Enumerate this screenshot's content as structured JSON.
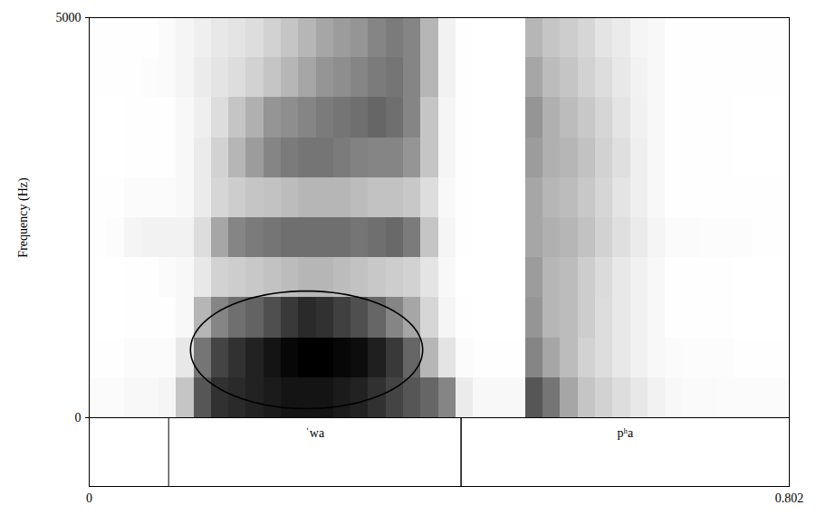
{
  "chart_data": {
    "type": "spectrogram",
    "y_label": "Frequency (Hz)",
    "xlim": [
      0,
      0.802
    ],
    "xticks": [
      0,
      0.802
    ],
    "ylim": [
      0,
      5000
    ],
    "yticks": [
      0,
      5000
    ],
    "time_bins": [
      0,
      0.02,
      0.04,
      0.06,
      0.08,
      0.1,
      0.12,
      0.14,
      0.16,
      0.18,
      0.2,
      0.22,
      0.24,
      0.26,
      0.28,
      0.3,
      0.32,
      0.34,
      0.36,
      0.38,
      0.4,
      0.42,
      0.44,
      0.46,
      0.48,
      0.5,
      0.52,
      0.54,
      0.56,
      0.58,
      0.6,
      0.62,
      0.64,
      0.66,
      0.68,
      0.7,
      0.72,
      0.74,
      0.76,
      0.78,
      0.8
    ],
    "frequency_bins": [
      0,
      500,
      1000,
      1500,
      2000,
      2500,
      3000,
      3500,
      4000,
      4500,
      5000
    ],
    "intensity": [
      [
        8,
        6,
        5,
        5,
        6,
        6,
        5,
        5,
        6,
        6
      ],
      [
        8,
        6,
        5,
        5,
        7,
        6,
        5,
        5,
        6,
        6
      ],
      [
        10,
        8,
        6,
        6,
        12,
        8,
        6,
        6,
        6,
        6
      ],
      [
        10,
        8,
        6,
        6,
        14,
        8,
        6,
        6,
        7,
        6
      ],
      [
        12,
        8,
        6,
        8,
        14,
        8,
        6,
        6,
        8,
        8
      ],
      [
        35,
        20,
        10,
        10,
        14,
        10,
        10,
        10,
        12,
        12
      ],
      [
        70,
        60,
        40,
        20,
        25,
        18,
        18,
        16,
        18,
        16
      ],
      [
        80,
        75,
        55,
        30,
        45,
        28,
        30,
        25,
        22,
        20
      ],
      [
        82,
        80,
        62,
        32,
        55,
        32,
        40,
        35,
        25,
        22
      ],
      [
        84,
        84,
        66,
        34,
        58,
        35,
        48,
        42,
        30,
        25
      ],
      [
        86,
        88,
        72,
        36,
        60,
        36,
        55,
        50,
        35,
        30
      ],
      [
        88,
        92,
        78,
        38,
        62,
        38,
        58,
        52,
        40,
        35
      ],
      [
        88,
        94,
        82,
        40,
        62,
        40,
        60,
        55,
        45,
        40
      ],
      [
        88,
        94,
        80,
        40,
        62,
        40,
        60,
        58,
        50,
        45
      ],
      [
        86,
        92,
        76,
        38,
        62,
        40,
        58,
        60,
        52,
        48
      ],
      [
        84,
        90,
        72,
        36,
        60,
        38,
        56,
        62,
        55,
        50
      ],
      [
        80,
        85,
        65,
        34,
        62,
        36,
        55,
        65,
        58,
        55
      ],
      [
        75,
        78,
        55,
        32,
        64,
        36,
        55,
        62,
        60,
        58
      ],
      [
        70,
        65,
        45,
        30,
        58,
        34,
        50,
        55,
        55,
        55
      ],
      [
        65,
        40,
        28,
        22,
        35,
        25,
        35,
        35,
        40,
        40
      ],
      [
        55,
        22,
        12,
        10,
        12,
        10,
        12,
        12,
        14,
        14
      ],
      [
        18,
        8,
        6,
        5,
        6,
        6,
        6,
        6,
        6,
        6
      ],
      [
        10,
        6,
        5,
        5,
        5,
        5,
        5,
        5,
        5,
        5
      ],
      [
        10,
        6,
        5,
        5,
        5,
        5,
        5,
        5,
        5,
        5
      ],
      [
        10,
        6,
        5,
        5,
        5,
        5,
        5,
        5,
        5,
        5
      ],
      [
        70,
        55,
        50,
        48,
        45,
        45,
        48,
        50,
        45,
        40
      ],
      [
        60,
        45,
        40,
        40,
        42,
        40,
        42,
        42,
        38,
        35
      ],
      [
        45,
        38,
        38,
        38,
        40,
        38,
        40,
        38,
        35,
        32
      ],
      [
        35,
        30,
        32,
        32,
        36,
        34,
        36,
        34,
        30,
        28
      ],
      [
        30,
        25,
        25,
        26,
        30,
        28,
        30,
        28,
        25,
        22
      ],
      [
        25,
        20,
        20,
        20,
        24,
        22,
        24,
        22,
        20,
        18
      ],
      [
        20,
        15,
        15,
        15,
        18,
        16,
        16,
        15,
        14,
        12
      ],
      [
        14,
        10,
        10,
        10,
        12,
        10,
        10,
        10,
        10,
        10
      ],
      [
        10,
        8,
        6,
        6,
        8,
        6,
        6,
        6,
        6,
        6
      ],
      [
        9,
        7,
        6,
        6,
        8,
        6,
        6,
        6,
        6,
        6
      ],
      [
        9,
        7,
        6,
        6,
        7,
        6,
        6,
        6,
        6,
        6
      ],
      [
        8,
        7,
        6,
        6,
        7,
        6,
        6,
        6,
        6,
        6
      ],
      [
        8,
        6,
        5,
        5,
        7,
        6,
        5,
        5,
        6,
        6
      ],
      [
        8,
        6,
        5,
        5,
        6,
        6,
        5,
        5,
        6,
        6
      ],
      [
        8,
        6,
        5,
        5,
        6,
        6,
        5,
        5,
        6,
        6
      ]
    ],
    "tier": [
      {
        "start": 0.091,
        "end": 0.426,
        "label": "ˈwa"
      },
      {
        "start": 0.426,
        "end": 0.802,
        "label": "pʰa"
      }
    ],
    "ellipse": {
      "x": [
        0.116,
        0.382
      ],
      "y": [
        113,
        1583
      ]
    }
  }
}
